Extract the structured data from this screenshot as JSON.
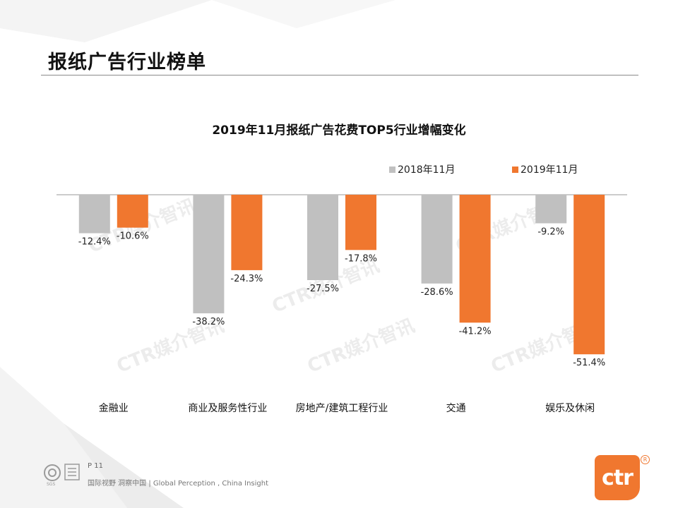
{
  "page": {
    "title": "报纸广告行业榜单",
    "page_number": "P 11",
    "tagline": "国际视野  洞察中国 | Global Perception , China Insight",
    "logo_text": "ctr",
    "logo_registered": "R",
    "watermark_text": "CTR媒介智讯"
  },
  "colors": {
    "series_2018": "#c0c0c0",
    "series_2019": "#f0772f",
    "brand": "#f0772f"
  },
  "chart_data": {
    "type": "bar",
    "title": "2019年11月报纸广告花费TOP5行业增幅变化",
    "categories": [
      "金融业",
      "商业及服务性行业",
      "房地产/建筑工程行业",
      "交通",
      "娱乐及休闲"
    ],
    "series": [
      {
        "name": "2018年11月",
        "values": [
          -12.4,
          -38.2,
          -27.5,
          -28.6,
          -9.2
        ]
      },
      {
        "name": "2019年11月",
        "values": [
          -10.6,
          -24.3,
          -17.8,
          -41.2,
          -51.4
        ]
      }
    ],
    "data_labels": [
      [
        "-12.4%",
        "-38.2%",
        "-27.5%",
        "-28.6%",
        "-9.2%"
      ],
      [
        "-10.6%",
        "-24.3%",
        "-17.8%",
        "-41.2%",
        "-51.4%"
      ]
    ],
    "ylim": [
      -60,
      0
    ],
    "legend_position": "top-right",
    "grid": false
  }
}
